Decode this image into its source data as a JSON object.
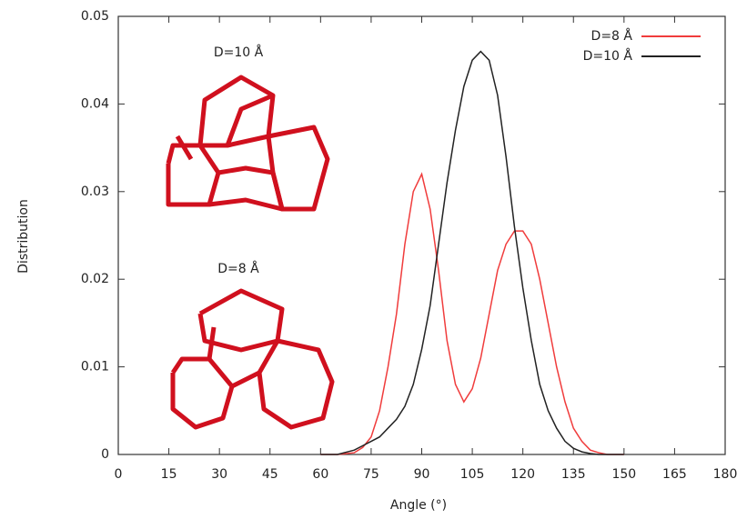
{
  "chart_data": {
    "type": "line",
    "xlabel": "Angle (°)",
    "ylabel": "Distribution",
    "annotations": [
      "D=10 Å",
      "D=8 Å"
    ],
    "x": [
      60,
      65,
      70,
      72.5,
      75,
      77.5,
      80,
      82.5,
      85,
      87.5,
      90,
      92.5,
      95,
      97.5,
      100,
      102.5,
      105,
      107.5,
      110,
      112.5,
      115,
      117.5,
      120,
      122.5,
      125,
      127.5,
      130,
      132.5,
      135,
      137.5,
      140,
      142.5,
      145,
      150
    ],
    "series": [
      {
        "name": "D=8 Å",
        "color": "#f03c3c",
        "values": [
          0,
          0,
          0.0002,
          0.0008,
          0.002,
          0.005,
          0.01,
          0.016,
          0.024,
          0.03,
          0.032,
          0.028,
          0.021,
          0.013,
          0.008,
          0.006,
          0.0075,
          0.011,
          0.016,
          0.021,
          0.024,
          0.0255,
          0.0255,
          0.024,
          0.02,
          0.015,
          0.01,
          0.006,
          0.003,
          0.0015,
          0.0005,
          0.0002,
          0,
          0
        ]
      },
      {
        "name": "D=10 Å",
        "color": "#222222",
        "values": [
          0,
          0,
          0.0005,
          0.001,
          0.0015,
          0.002,
          0.003,
          0.004,
          0.0055,
          0.008,
          0.012,
          0.017,
          0.024,
          0.031,
          0.037,
          0.042,
          0.045,
          0.046,
          0.045,
          0.041,
          0.034,
          0.026,
          0.019,
          0.013,
          0.008,
          0.005,
          0.003,
          0.0015,
          0.0007,
          0.0003,
          0.0001,
          0,
          0,
          0
        ]
      }
    ],
    "xlim": [
      0,
      180
    ],
    "xticks": [
      0,
      15,
      30,
      45,
      60,
      75,
      90,
      105,
      120,
      135,
      150,
      165,
      180
    ],
    "ylim": [
      0,
      0.05
    ],
    "yticks": [
      0,
      0.01,
      0.02,
      0.03,
      0.04,
      0.05
    ],
    "legend": "upper right"
  }
}
